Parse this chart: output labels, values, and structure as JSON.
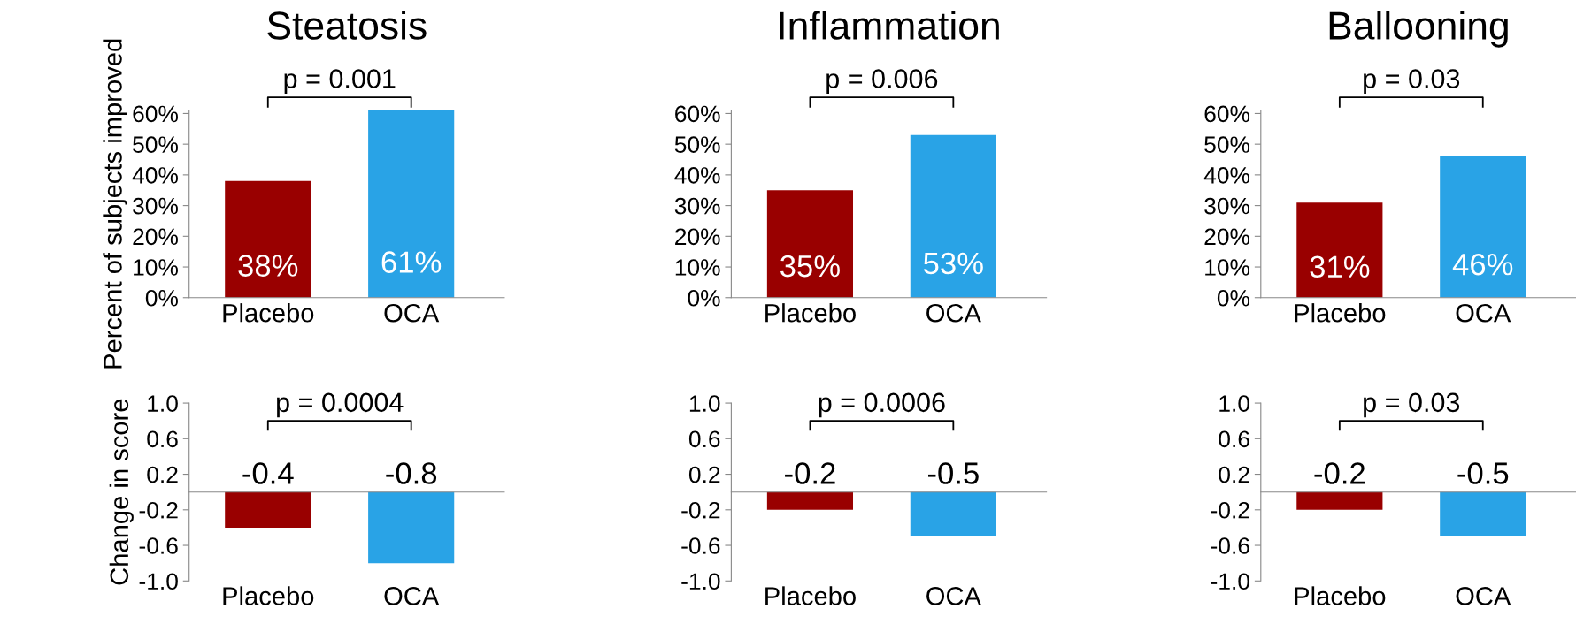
{
  "chart_data": [
    {
      "type": "bar",
      "title": "Steatosis",
      "ylabel": "Percent of subjects improved",
      "categories": [
        "Placebo",
        "OCA"
      ],
      "values": [
        38,
        61
      ],
      "colors": [
        "#990000",
        "#29a3e6"
      ],
      "ylim": [
        0,
        61
      ],
      "yticks": [
        {
          "value": 0,
          "label": "0%"
        },
        {
          "value": 10,
          "label": "10%"
        },
        {
          "value": 20,
          "label": "20%"
        },
        {
          "value": 30,
          "label": "30%"
        },
        {
          "value": 40,
          "label": "40%"
        },
        {
          "value": 50,
          "label": "50%"
        },
        {
          "value": 60,
          "label": "60%"
        }
      ],
      "value_labels": [
        "38%",
        "61%"
      ],
      "annotations": [
        "p = 0.001"
      ]
    },
    {
      "type": "bar",
      "title": "Inflammation",
      "categories": [
        "Placebo",
        "OCA"
      ],
      "values": [
        35,
        53
      ],
      "colors": [
        "#990000",
        "#29a3e6"
      ],
      "ylim": [
        0,
        61
      ],
      "yticks": [
        {
          "value": 0,
          "label": "0%"
        },
        {
          "value": 10,
          "label": "10%"
        },
        {
          "value": 20,
          "label": "20%"
        },
        {
          "value": 30,
          "label": "30%"
        },
        {
          "value": 40,
          "label": "40%"
        },
        {
          "value": 50,
          "label": "50%"
        },
        {
          "value": 60,
          "label": "60%"
        }
      ],
      "value_labels": [
        "35%",
        "53%"
      ],
      "annotations": [
        "p = 0.006"
      ]
    },
    {
      "type": "bar",
      "title": "Ballooning",
      "categories": [
        "Placebo",
        "OCA"
      ],
      "values": [
        31,
        46
      ],
      "colors": [
        "#990000",
        "#29a3e6"
      ],
      "ylim": [
        0,
        61
      ],
      "yticks": [
        {
          "value": 0,
          "label": "0%"
        },
        {
          "value": 10,
          "label": "10%"
        },
        {
          "value": 20,
          "label": "20%"
        },
        {
          "value": 30,
          "label": "30%"
        },
        {
          "value": 40,
          "label": "40%"
        },
        {
          "value": 50,
          "label": "50%"
        },
        {
          "value": 60,
          "label": "60%"
        }
      ],
      "value_labels": [
        "31%",
        "46%"
      ],
      "annotations": [
        "p = 0.03"
      ]
    },
    {
      "type": "bar",
      "ylabel": "Change in score",
      "categories": [
        "Placebo",
        "OCA"
      ],
      "values": [
        -0.4,
        -0.8
      ],
      "colors": [
        "#990000",
        "#29a3e6"
      ],
      "ylim": [
        -1,
        1
      ],
      "yticks": [
        {
          "value": 1,
          "label": "1.0"
        },
        {
          "value": 0.6,
          "label": "0.6"
        },
        {
          "value": 0.2,
          "label": "0.2"
        },
        {
          "value": -0.2,
          "label": "-0.2"
        },
        {
          "value": -0.6,
          "label": "-0.6"
        },
        {
          "value": -1,
          "label": "-1.0"
        }
      ],
      "value_labels": [
        "-0.4",
        "-0.8"
      ],
      "annotations": [
        "p = 0.0004"
      ]
    },
    {
      "type": "bar",
      "categories": [
        "Placebo",
        "OCA"
      ],
      "values": [
        -0.2,
        -0.5
      ],
      "colors": [
        "#990000",
        "#29a3e6"
      ],
      "ylim": [
        -1,
        1
      ],
      "yticks": [
        {
          "value": 1,
          "label": "1.0"
        },
        {
          "value": 0.6,
          "label": "0.6"
        },
        {
          "value": 0.2,
          "label": "0.2"
        },
        {
          "value": -0.2,
          "label": "-0.2"
        },
        {
          "value": -0.6,
          "label": "-0.6"
        },
        {
          "value": -1,
          "label": "-1.0"
        }
      ],
      "value_labels": [
        "-0.2",
        "-0.5"
      ],
      "annotations": [
        "p = 0.0006"
      ]
    },
    {
      "type": "bar",
      "categories": [
        "Placebo",
        "OCA"
      ],
      "values": [
        -0.2,
        -0.5
      ],
      "colors": [
        "#990000",
        "#29a3e6"
      ],
      "ylim": [
        -1,
        1
      ],
      "yticks": [
        {
          "value": 1,
          "label": "1.0"
        },
        {
          "value": 0.6,
          "label": "0.6"
        },
        {
          "value": 0.2,
          "label": "0.2"
        },
        {
          "value": -0.2,
          "label": "-0.2"
        },
        {
          "value": -0.6,
          "label": "-0.6"
        },
        {
          "value": -1,
          "label": "-1.0"
        }
      ],
      "value_labels": [
        "-0.2",
        "-0.5"
      ],
      "annotations": [
        "p = 0.03"
      ]
    }
  ]
}
